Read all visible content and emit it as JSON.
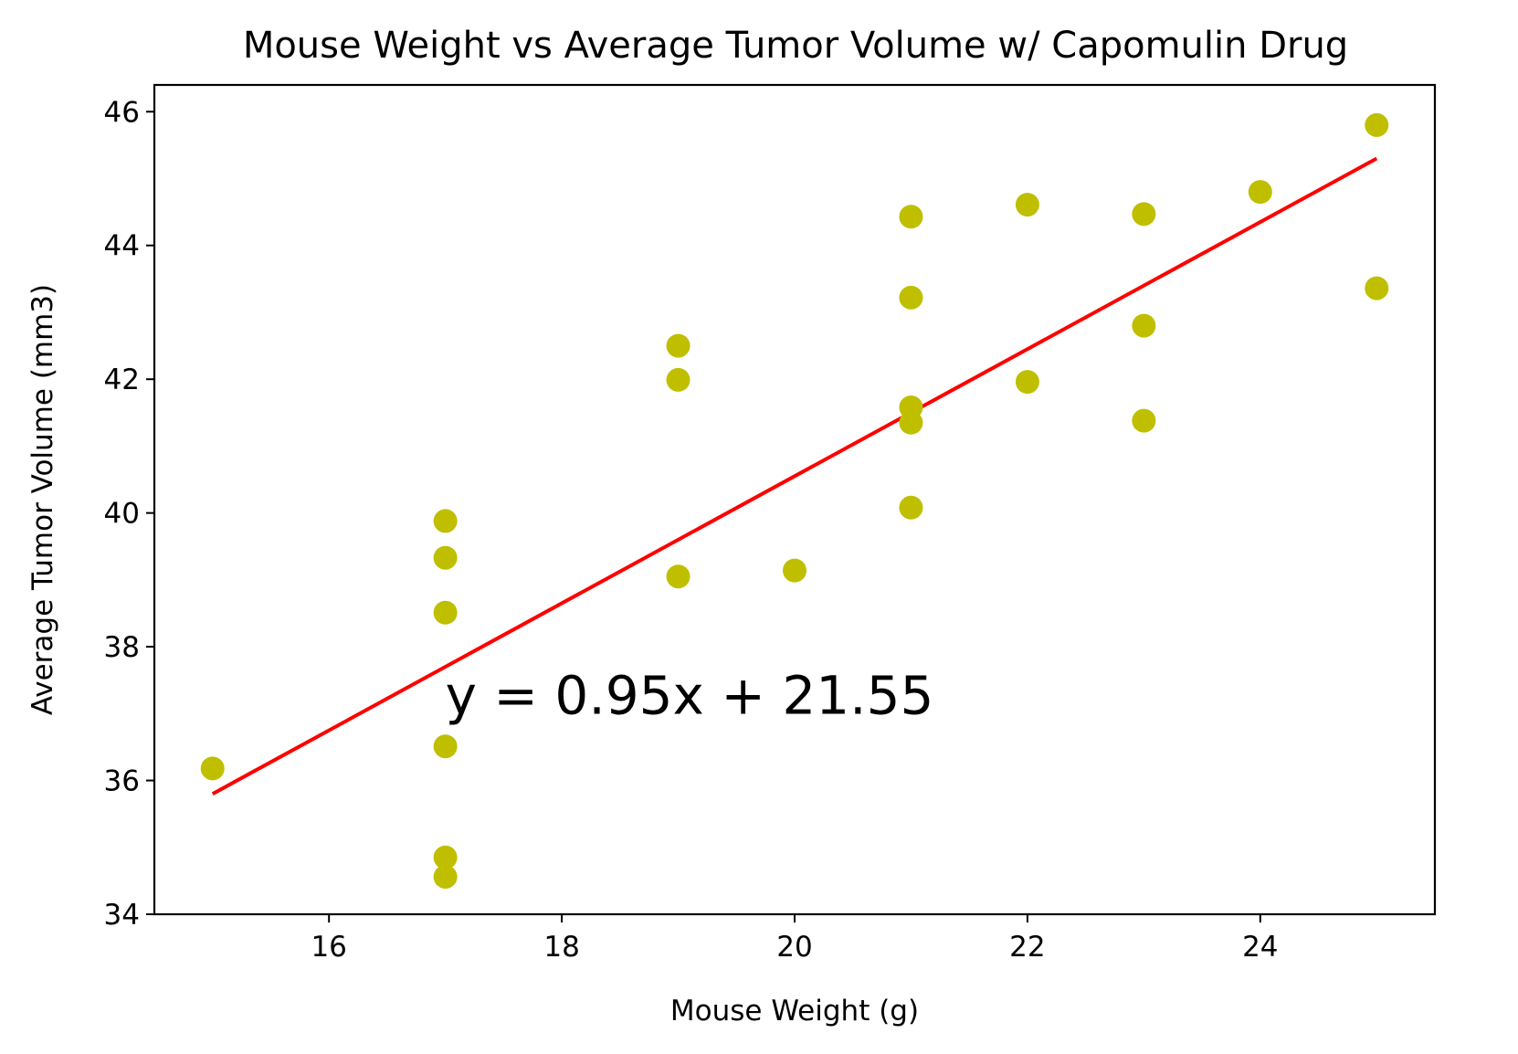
{
  "chart_data": {
    "type": "scatter",
    "title": "Mouse Weight vs Average Tumor Volume w/ Capomulin Drug",
    "xlabel": "Mouse Weight (g)",
    "ylabel": "Average Tumor Volume (mm3)",
    "xlim": [
      14.5,
      25.5
    ],
    "ylim": [
      34,
      46.4
    ],
    "xticks": [
      16,
      18,
      20,
      22,
      24
    ],
    "yticks": [
      34,
      36,
      38,
      40,
      42,
      44,
      46
    ],
    "grid": false,
    "legend": "none",
    "marker_color": "#bfbf00",
    "line_color": "#ff0000",
    "points": [
      {
        "x": 15,
        "y": 36.18
      },
      {
        "x": 17,
        "y": 39.88
      },
      {
        "x": 17,
        "y": 39.33
      },
      {
        "x": 17,
        "y": 38.51
      },
      {
        "x": 17,
        "y": 36.51
      },
      {
        "x": 17,
        "y": 34.85
      },
      {
        "x": 17,
        "y": 34.56
      },
      {
        "x": 19,
        "y": 42.5
      },
      {
        "x": 19,
        "y": 41.99
      },
      {
        "x": 19,
        "y": 39.05
      },
      {
        "x": 20,
        "y": 39.14
      },
      {
        "x": 21,
        "y": 44.43
      },
      {
        "x": 21,
        "y": 43.22
      },
      {
        "x": 21,
        "y": 41.58
      },
      {
        "x": 21,
        "y": 41.35
      },
      {
        "x": 21,
        "y": 40.08
      },
      {
        "x": 22,
        "y": 44.61
      },
      {
        "x": 22,
        "y": 41.96
      },
      {
        "x": 23,
        "y": 44.47
      },
      {
        "x": 23,
        "y": 42.8
      },
      {
        "x": 23,
        "y": 41.38
      },
      {
        "x": 24,
        "y": 44.8
      },
      {
        "x": 25,
        "y": 45.8
      },
      {
        "x": 25,
        "y": 43.36
      }
    ],
    "regression": {
      "slope": 0.95,
      "intercept": 21.55,
      "x_range": [
        15,
        25
      ],
      "label": "y = 0.95x + 21.55",
      "label_position": {
        "x": 17,
        "y": 37
      }
    }
  }
}
